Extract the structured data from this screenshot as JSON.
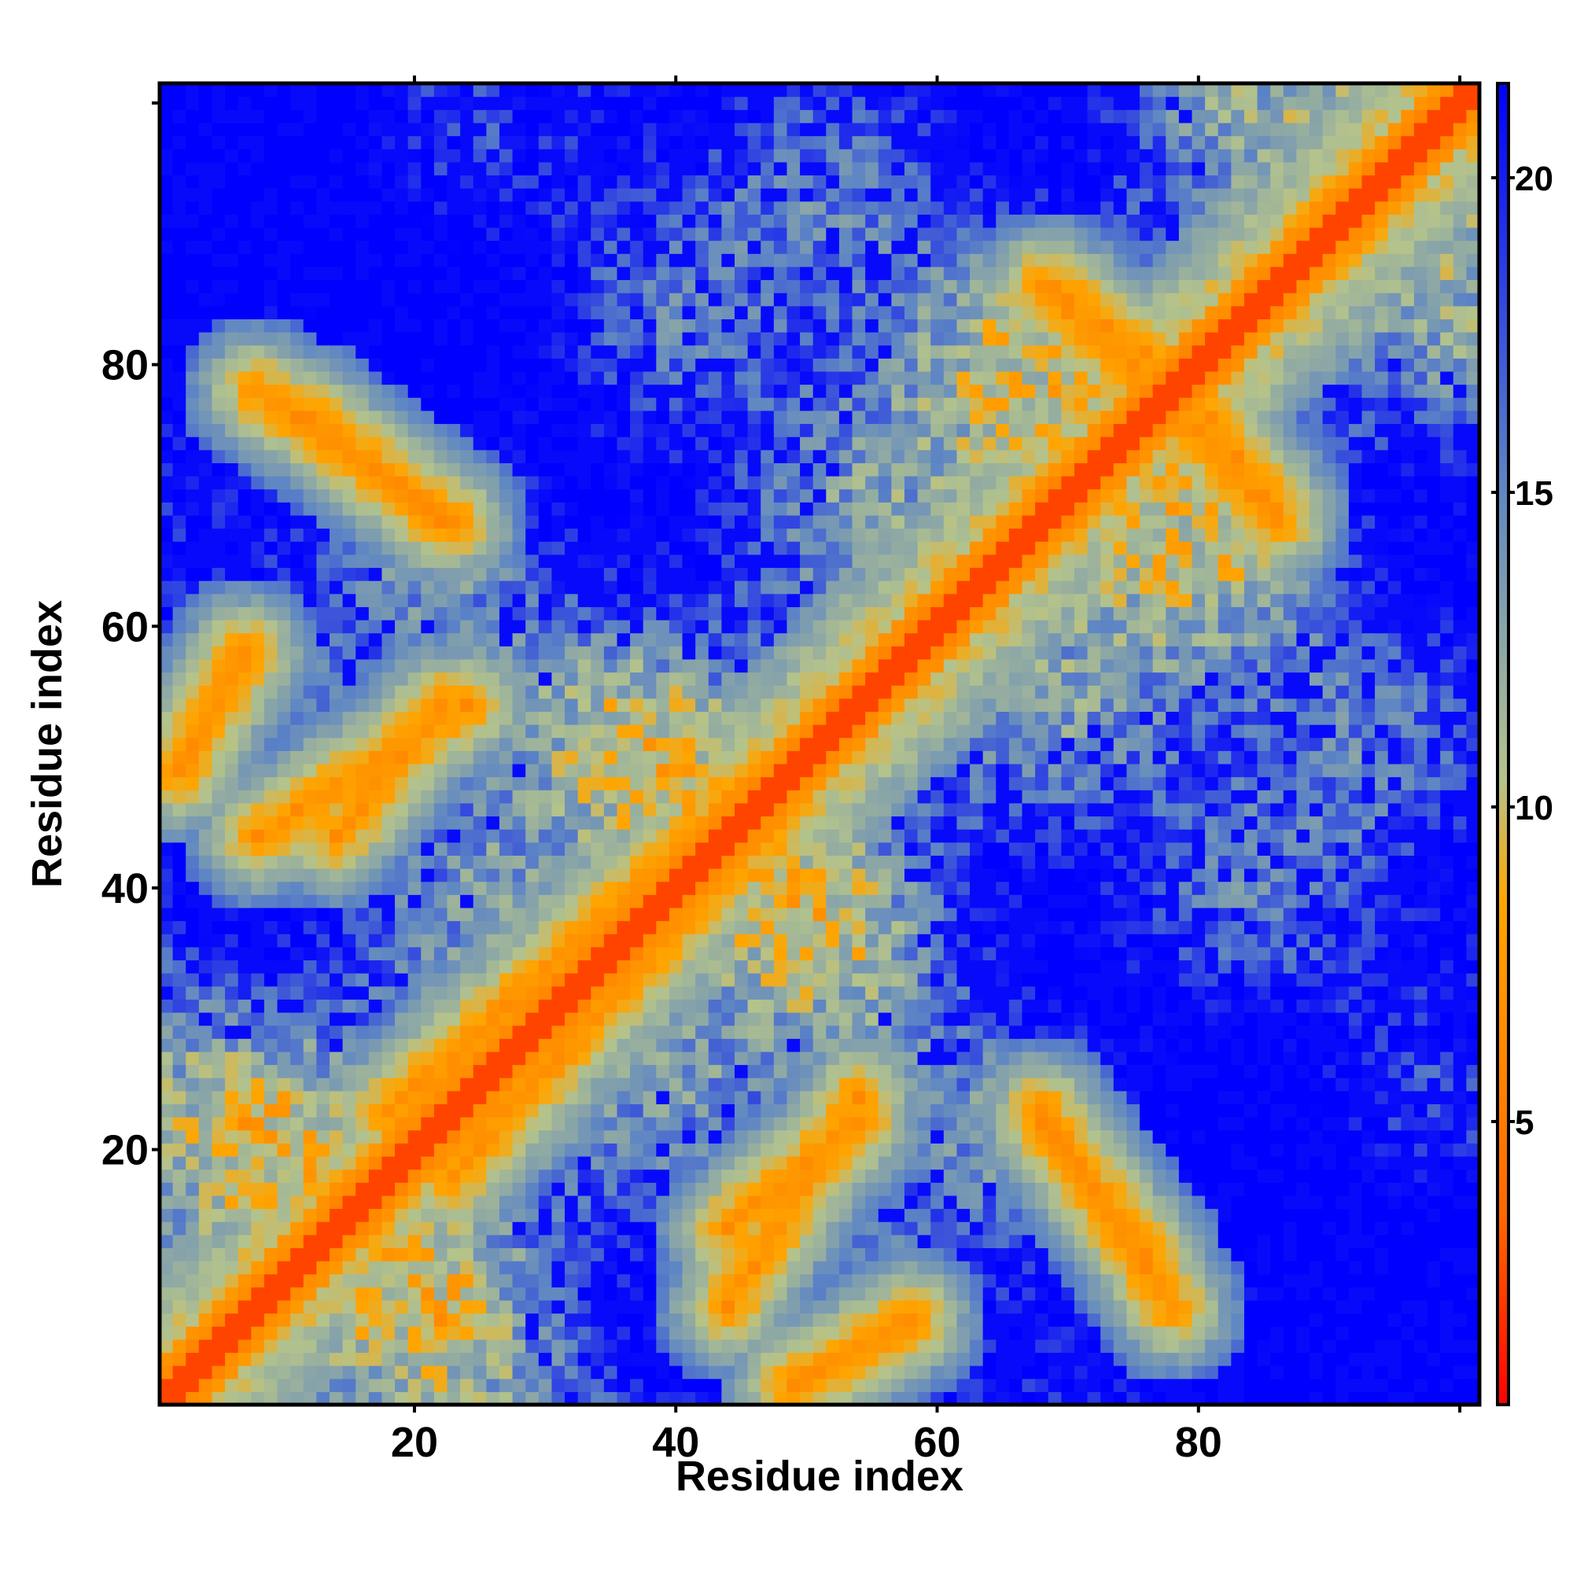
{
  "chart_data": {
    "type": "heatmap",
    "title": "",
    "xlabel": "Residue index",
    "ylabel": "Residue index",
    "xlim": [
      1,
      101
    ],
    "ylim": [
      1,
      101
    ],
    "x_ticks": [
      20,
      40,
      60,
      80
    ],
    "y_ticks": [
      20,
      40,
      60,
      80
    ],
    "x_tick_labels": [
      "20",
      "40",
      "60",
      "80"
    ],
    "y_tick_labels": [
      "20",
      "40",
      "60",
      "80"
    ],
    "grid_size": 101,
    "colorbar": {
      "range": [
        0.5,
        21.5
      ],
      "ticks": [
        5,
        10,
        15,
        20
      ],
      "tick_labels": [
        "5",
        "10",
        "15",
        "20"
      ],
      "colors": [
        "#ff0000",
        "#ff6600",
        "#ffa500",
        "#b4c38c",
        "#5f87c3",
        "#0000ff"
      ],
      "stops": [
        0.5,
        3.5,
        8.5,
        10.5,
        15.0,
        21.5
      ]
    },
    "contact_bands": [
      {
        "from": [
          2,
          2
        ],
        "to": [
          101,
          101
        ],
        "kind": "diagonal"
      },
      {
        "from": [
          23,
          18
        ],
        "to": [
          62,
          62
        ],
        "kind": "helix-offset"
      },
      {
        "from": [
          12,
          76
        ],
        "to": [
          22,
          68
        ],
        "kind": "antiparallel"
      },
      {
        "from": [
          14,
          44
        ],
        "to": [
          22,
          54
        ],
        "kind": "parallel"
      },
      {
        "from": [
          44,
          8
        ],
        "to": [
          54,
          24
        ],
        "kind": "parallel"
      },
      {
        "from": [
          68,
          23
        ],
        "to": [
          78,
          8
        ],
        "kind": "antiparallel"
      },
      {
        "from": [
          68,
          86
        ],
        "to": [
          78,
          77
        ],
        "kind": "antiparallel"
      },
      {
        "from": [
          80,
          77
        ],
        "to": [
          86,
          69
        ],
        "kind": "antiparallel"
      },
      {
        "from": [
          2,
          49
        ],
        "to": [
          7,
          58
        ],
        "kind": "parallel"
      },
      {
        "from": [
          49,
          2
        ],
        "to": [
          58,
          7
        ],
        "kind": "parallel"
      }
    ]
  }
}
